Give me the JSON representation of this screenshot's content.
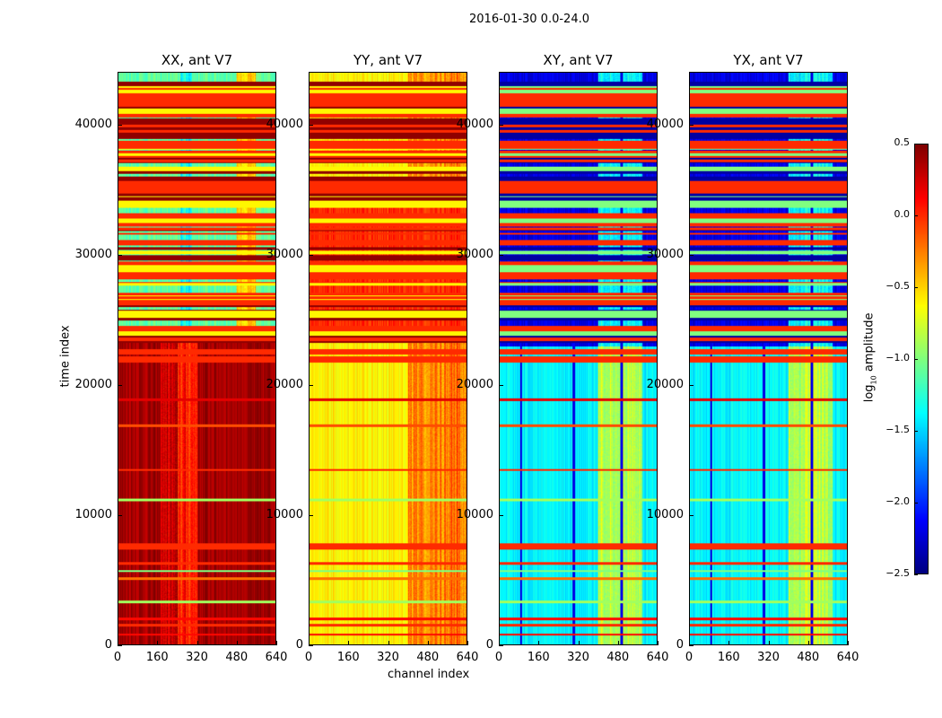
{
  "chart_data": {
    "type": "heatmap",
    "title": "2016-01-30 0.0-24.0",
    "xlabel": "channel index",
    "ylabel": "time index",
    "xlim": [
      0,
      640
    ],
    "ylim": [
      0,
      44100
    ],
    "xticks": [
      "0",
      "160",
      "320",
      "480",
      "640"
    ],
    "yticks": [
      "0",
      "10000",
      "20000",
      "30000",
      "40000"
    ],
    "colorbar": {
      "label": "log10 amplitude",
      "label_base": "log",
      "label_sub": "10",
      "label_rest": " amplitude",
      "range": [
        -2.5,
        0.5
      ],
      "ticks": [
        "0.5",
        "0.0",
        "−0.5",
        "−1.0",
        "−1.5",
        "−2.0",
        "−2.5"
      ],
      "colormap": "jet"
    },
    "common_stripes": [
      {
        "t": 800,
        "v": 0.1
      },
      {
        "t": 1500,
        "v": 0.0
      },
      {
        "t": 2000,
        "v": 0.1
      },
      {
        "t": 3300,
        "v": -0.9
      },
      {
        "t": 5100,
        "v": -0.2
      },
      {
        "t": 5700,
        "v": -1.0
      },
      {
        "t": 6300,
        "v": 0.0
      },
      {
        "t": 7600,
        "v": 0.0,
        "w": 250
      },
      {
        "t": 11200,
        "v": -0.9
      },
      {
        "t": 13500,
        "v": 0.0
      },
      {
        "t": 16900,
        "v": -0.1
      },
      {
        "t": 18900,
        "v": 0.2
      },
      {
        "t": 22000,
        "v": 0.0,
        "w": 250
      },
      {
        "t": 22600,
        "v": 0.0,
        "w": 200
      }
    ],
    "panels": [
      {
        "title": "XX, ant V7",
        "low": {
          "t1": 23500,
          "base": 0.4,
          "bands": [
            {
              "c0": 240,
              "c1": 320,
              "v": 0.05
            },
            {
              "c0": 170,
              "c1": 240,
              "v": 0.25
            }
          ]
        },
        "high": {
          "base": -1.1,
          "bands": [
            {
              "c0": 250,
              "c1": 300,
              "v": -1.35
            },
            {
              "c0": 480,
              "c1": 560,
              "v": -0.5
            }
          ]
        }
      },
      {
        "title": "YY, ant V7",
        "low": {
          "t1": 24000,
          "base": -0.6,
          "bands": [
            {
              "c0": 400,
              "c1": 640,
              "v": -0.25
            }
          ]
        },
        "mid": {
          "t0": 24000,
          "t1": 35000,
          "base": 0.0
        },
        "high": {
          "base": -0.6,
          "bands": [
            {
              "c0": 400,
              "c1": 640,
              "v": -0.3
            }
          ]
        }
      },
      {
        "title": "XY, ant V7",
        "low": {
          "t1": 23000,
          "base": -1.4,
          "bands": [
            {
              "c0": 400,
              "c1": 580,
              "v": -0.85
            }
          ],
          "lines": [
            85,
            300,
            495
          ]
        },
        "high": {
          "base": -2.2,
          "bands": [
            {
              "c0": 400,
              "c1": 580,
              "v": -1.4
            }
          ],
          "lines": [
            495
          ]
        }
      },
      {
        "title": "YX, ant V7",
        "low": {
          "t1": 23000,
          "base": -1.4,
          "bands": [
            {
              "c0": 400,
              "c1": 580,
              "v": -0.85
            }
          ],
          "lines": [
            85,
            300,
            495
          ]
        },
        "high": {
          "base": -2.2,
          "bands": [
            {
              "c0": 400,
              "c1": 580,
              "v": -1.4
            }
          ],
          "lines": [
            495
          ]
        }
      }
    ]
  }
}
